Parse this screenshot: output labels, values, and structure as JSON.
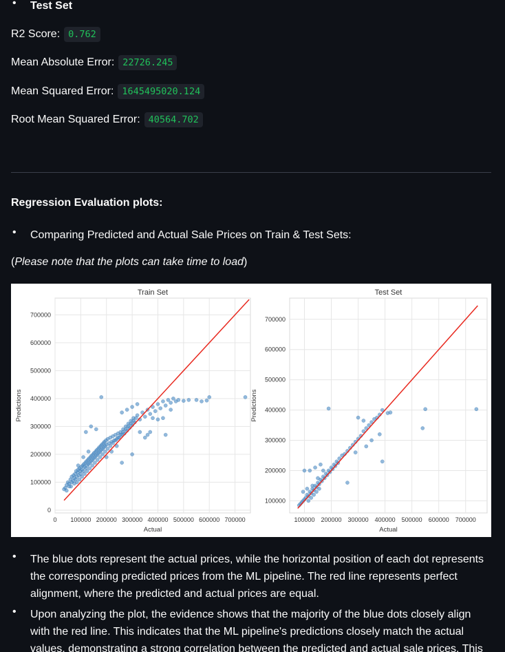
{
  "test_set_heading": "Test Set",
  "metrics": [
    {
      "label": "R2 Score:",
      "value": "0.762"
    },
    {
      "label": "Mean Absolute Error:",
      "value": "22726.245"
    },
    {
      "label": "Mean Squared Error:",
      "value": "1645495020.124"
    },
    {
      "label": "Root Mean Squared Error:",
      "value": "40564.702"
    }
  ],
  "section_title": "Regression Evaluation plots:",
  "compare_bullet": "Comparing Predicted and Actual Sale Prices on Train & Test Sets:",
  "note": {
    "open": "(",
    "italic": "Please note that the plots can take time to load",
    "close": ")"
  },
  "explanations": [
    "The blue dots represent the actual prices, while the horizontal position of each dot represents the corresponding predicted prices from the ML pipeline. The red line represents perfect alignment, where the predicted and actual prices are equal.",
    "Upon analyzing the plot, the evidence shows that the majority of the blue dots closely align with the red line. This indicates that the ML pipeline's predictions closely match the actual values, demonstrating a strong correlation between the predicted and actual sale prices. This"
  ],
  "colors": {
    "point": "#4a8bc4",
    "line": "#e8281e",
    "code_text": "#20c15a"
  },
  "chart_data": [
    {
      "type": "scatter",
      "title": "Train Set",
      "xlabel": "Actual",
      "ylabel": "Predictions",
      "xticks": [
        "0",
        "100000",
        "200000",
        "300000",
        "400000",
        "500000",
        "600000",
        "700000"
      ],
      "yticks": [
        "0",
        "100000",
        "200000",
        "300000",
        "400000",
        "500000",
        "600000",
        "700000"
      ],
      "xlim": [
        0,
        760000
      ],
      "ylim": [
        -10000,
        760000
      ],
      "grid": true,
      "reference_line": {
        "from": [
          35000,
          35000
        ],
        "to": [
          755000,
          755000
        ]
      },
      "points": [
        [
          35000,
          75000
        ],
        [
          40000,
          80000
        ],
        [
          45000,
          90000
        ],
        [
          50000,
          100000
        ],
        [
          55000,
          95000
        ],
        [
          60000,
          110000
        ],
        [
          62000,
          85000
        ],
        [
          65000,
          120000
        ],
        [
          70000,
          105000
        ],
        [
          72000,
          125000
        ],
        [
          75000,
          115000
        ],
        [
          78000,
          130000
        ],
        [
          80000,
          110000
        ],
        [
          82000,
          140000
        ],
        [
          85000,
          120000
        ],
        [
          88000,
          135000
        ],
        [
          90000,
          145000
        ],
        [
          92000,
          125000
        ],
        [
          95000,
          150000
        ],
        [
          98000,
          140000
        ],
        [
          100000,
          130000
        ],
        [
          102000,
          155000
        ],
        [
          105000,
          145000
        ],
        [
          108000,
          160000
        ],
        [
          110000,
          140000
        ],
        [
          112000,
          165000
        ],
        [
          115000,
          155000
        ],
        [
          118000,
          170000
        ],
        [
          120000,
          150000
        ],
        [
          122000,
          175000
        ],
        [
          125000,
          160000
        ],
        [
          128000,
          180000
        ],
        [
          130000,
          165000
        ],
        [
          132000,
          185000
        ],
        [
          135000,
          170000
        ],
        [
          138000,
          190000
        ],
        [
          140000,
          175000
        ],
        [
          142000,
          195000
        ],
        [
          145000,
          180000
        ],
        [
          148000,
          200000
        ],
        [
          150000,
          185000
        ],
        [
          152000,
          205000
        ],
        [
          155000,
          190000
        ],
        [
          158000,
          210000
        ],
        [
          160000,
          195000
        ],
        [
          162000,
          215000
        ],
        [
          165000,
          200000
        ],
        [
          168000,
          220000
        ],
        [
          170000,
          205000
        ],
        [
          172000,
          225000
        ],
        [
          175000,
          210000
        ],
        [
          178000,
          230000
        ],
        [
          180000,
          215000
        ],
        [
          182000,
          235000
        ],
        [
          185000,
          220000
        ],
        [
          188000,
          240000
        ],
        [
          190000,
          225000
        ],
        [
          192000,
          245000
        ],
        [
          195000,
          230000
        ],
        [
          198000,
          250000
        ],
        [
          200000,
          235000
        ],
        [
          205000,
          255000
        ],
        [
          210000,
          240000
        ],
        [
          215000,
          260000
        ],
        [
          220000,
          245000
        ],
        [
          225000,
          265000
        ],
        [
          230000,
          250000
        ],
        [
          235000,
          270000
        ],
        [
          240000,
          255000
        ],
        [
          245000,
          275000
        ],
        [
          250000,
          260000
        ],
        [
          255000,
          280000
        ],
        [
          260000,
          270000
        ],
        [
          265000,
          290000
        ],
        [
          270000,
          275000
        ],
        [
          275000,
          300000
        ],
        [
          280000,
          285000
        ],
        [
          285000,
          310000
        ],
        [
          290000,
          295000
        ],
        [
          295000,
          320000
        ],
        [
          300000,
          305000
        ],
        [
          305000,
          330000
        ],
        [
          310000,
          315000
        ],
        [
          320000,
          340000
        ],
        [
          330000,
          325000
        ],
        [
          340000,
          350000
        ],
        [
          350000,
          335000
        ],
        [
          360000,
          360000
        ],
        [
          370000,
          345000
        ],
        [
          380000,
          370000
        ],
        [
          390000,
          355000
        ],
        [
          400000,
          380000
        ],
        [
          410000,
          365000
        ],
        [
          420000,
          390000
        ],
        [
          430000,
          375000
        ],
        [
          440000,
          395000
        ],
        [
          450000,
          385000
        ],
        [
          460000,
          400000
        ],
        [
          470000,
          390000
        ],
        [
          480000,
          395000
        ],
        [
          500000,
          392000
        ],
        [
          520000,
          395000
        ],
        [
          550000,
          395000
        ],
        [
          570000,
          390000
        ],
        [
          590000,
          393000
        ],
        [
          600000,
          405000
        ],
        [
          740000,
          405000
        ],
        [
          180000,
          405000
        ],
        [
          120000,
          280000
        ],
        [
          140000,
          300000
        ],
        [
          160000,
          290000
        ],
        [
          260000,
          170000
        ],
        [
          300000,
          200000
        ],
        [
          330000,
          280000
        ],
        [
          350000,
          260000
        ],
        [
          90000,
          160000
        ],
        [
          110000,
          190000
        ],
        [
          130000,
          210000
        ],
        [
          200000,
          190000
        ],
        [
          220000,
          210000
        ],
        [
          240000,
          230000
        ],
        [
          380000,
          330000
        ],
        [
          400000,
          325000
        ],
        [
          420000,
          330000
        ],
        [
          360000,
          270000
        ],
        [
          370000,
          280000
        ],
        [
          260000,
          350000
        ],
        [
          280000,
          360000
        ],
        [
          300000,
          370000
        ],
        [
          320000,
          380000
        ],
        [
          450000,
          360000
        ],
        [
          430000,
          270000
        ],
        [
          45000,
          70000
        ],
        [
          55000,
          85000
        ],
        [
          65000,
          100000
        ],
        [
          75000,
          95000
        ],
        [
          85000,
          100000
        ],
        [
          95000,
          110000
        ],
        [
          105000,
          120000
        ],
        [
          115000,
          130000
        ],
        [
          125000,
          140000
        ],
        [
          135000,
          150000
        ],
        [
          145000,
          160000
        ],
        [
          155000,
          170000
        ],
        [
          165000,
          180000
        ],
        [
          175000,
          190000
        ],
        [
          185000,
          200000
        ],
        [
          195000,
          210000
        ],
        [
          205000,
          220000
        ],
        [
          215000,
          230000
        ],
        [
          225000,
          240000
        ],
        [
          235000,
          250000
        ],
        [
          245000,
          260000
        ],
        [
          255000,
          270000
        ],
        [
          265000,
          280000
        ],
        [
          275000,
          290000
        ],
        [
          285000,
          300000
        ],
        [
          295000,
          310000
        ],
        [
          305000,
          320000
        ],
        [
          315000,
          330000
        ]
      ]
    },
    {
      "type": "scatter",
      "title": "Test Set",
      "xlabel": "Actual",
      "ylabel": "Predictions",
      "xticks": [
        "100000",
        "200000",
        "300000",
        "400000",
        "500000",
        "600000",
        "700000"
      ],
      "yticks": [
        "100000",
        "200000",
        "300000",
        "400000",
        "500000",
        "600000",
        "700000"
      ],
      "xlim": [
        45000,
        780000
      ],
      "ylim": [
        60000,
        770000
      ],
      "grid": true,
      "reference_line": {
        "from": [
          75000,
          75000
        ],
        "to": [
          745000,
          745000
        ]
      },
      "points": [
        [
          80000,
          85000
        ],
        [
          85000,
          90000
        ],
        [
          90000,
          95000
        ],
        [
          95000,
          100000
        ],
        [
          100000,
          105000
        ],
        [
          105000,
          110000
        ],
        [
          110000,
          120000
        ],
        [
          115000,
          115000
        ],
        [
          120000,
          130000
        ],
        [
          125000,
          125000
        ],
        [
          130000,
          140000
        ],
        [
          135000,
          135000
        ],
        [
          140000,
          150000
        ],
        [
          145000,
          145000
        ],
        [
          150000,
          160000
        ],
        [
          155000,
          155000
        ],
        [
          160000,
          170000
        ],
        [
          165000,
          165000
        ],
        [
          170000,
          180000
        ],
        [
          175000,
          175000
        ],
        [
          180000,
          190000
        ],
        [
          185000,
          185000
        ],
        [
          190000,
          200000
        ],
        [
          195000,
          195000
        ],
        [
          200000,
          210000
        ],
        [
          205000,
          205000
        ],
        [
          210000,
          220000
        ],
        [
          215000,
          215000
        ],
        [
          220000,
          230000
        ],
        [
          225000,
          225000
        ],
        [
          230000,
          240000
        ],
        [
          240000,
          250000
        ],
        [
          250000,
          255000
        ],
        [
          260000,
          265000
        ],
        [
          270000,
          275000
        ],
        [
          280000,
          285000
        ],
        [
          290000,
          295000
        ],
        [
          300000,
          305000
        ],
        [
          310000,
          315000
        ],
        [
          320000,
          330000
        ],
        [
          330000,
          340000
        ],
        [
          340000,
          350000
        ],
        [
          350000,
          360000
        ],
        [
          360000,
          370000
        ],
        [
          370000,
          375000
        ],
        [
          380000,
          385000
        ],
        [
          390000,
          400000
        ],
        [
          410000,
          390000
        ],
        [
          420000,
          392000
        ],
        [
          540000,
          340000
        ],
        [
          550000,
          403000
        ],
        [
          740000,
          403000
        ],
        [
          190000,
          405000
        ],
        [
          300000,
          375000
        ],
        [
          320000,
          365000
        ],
        [
          100000,
          200000
        ],
        [
          120000,
          200000
        ],
        [
          140000,
          210000
        ],
        [
          160000,
          220000
        ],
        [
          260000,
          160000
        ],
        [
          290000,
          260000
        ],
        [
          330000,
          280000
        ],
        [
          350000,
          300000
        ],
        [
          380000,
          320000
        ],
        [
          390000,
          230000
        ],
        [
          130000,
          150000
        ],
        [
          150000,
          175000
        ],
        [
          170000,
          200000
        ],
        [
          110000,
          140000
        ],
        [
          95000,
          130000
        ],
        [
          115000,
          100000
        ],
        [
          125000,
          110000
        ],
        [
          135000,
          120000
        ],
        [
          145000,
          130000
        ],
        [
          155000,
          140000
        ]
      ]
    }
  ]
}
